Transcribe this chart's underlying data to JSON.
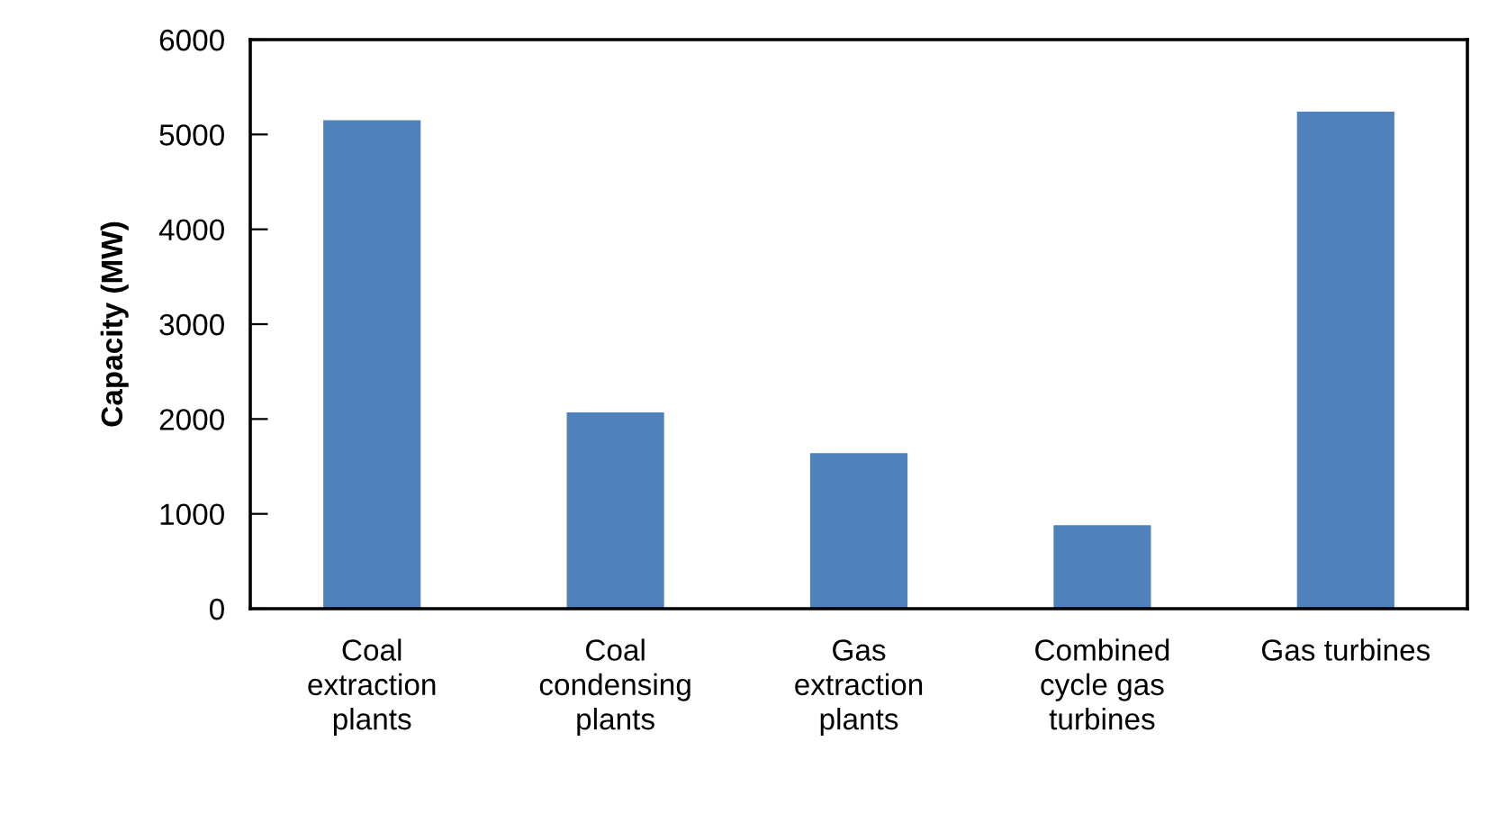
{
  "chart_data": {
    "type": "bar",
    "categories": [
      "Coal\nextraction\nplants",
      "Coal\ncondensing\nplants",
      "Gas\nextraction\nplants",
      "Combined\ncycle gas\nturbines",
      "Gas turbines"
    ],
    "values": [
      5150,
      2070,
      1640,
      880,
      5240
    ],
    "color": "#4f81bd",
    "ylabel": "Capacity (MW)",
    "ylim": [
      0,
      6000
    ],
    "yticks": [
      0,
      1000,
      2000,
      3000,
      4000,
      5000,
      6000
    ]
  }
}
